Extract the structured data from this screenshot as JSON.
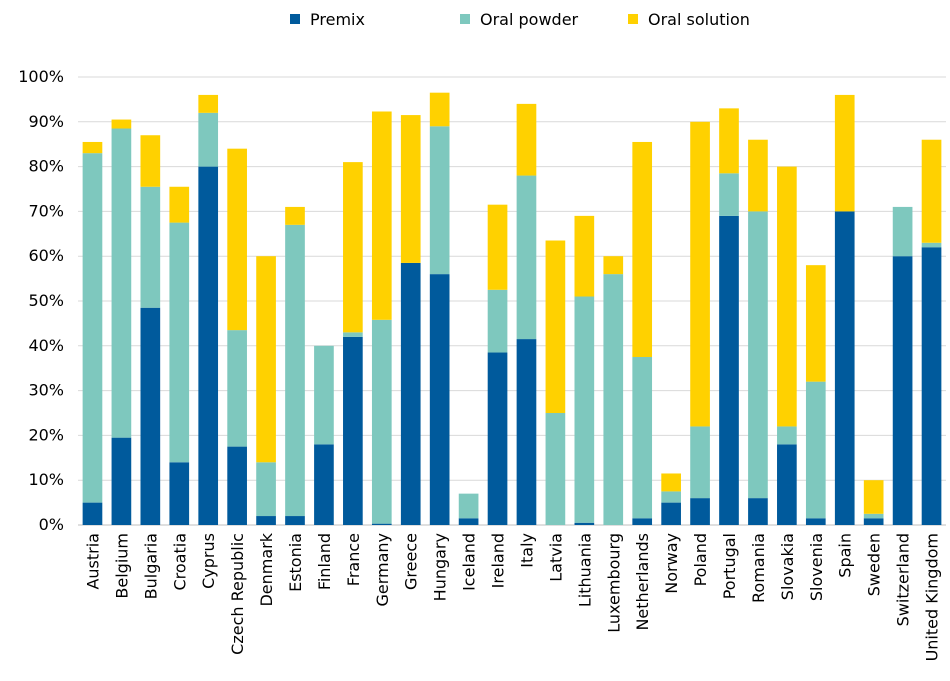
{
  "chart_data": {
    "type": "bar",
    "stacked": true,
    "title": "",
    "xlabel": "",
    "ylabel": "",
    "ylim": [
      0,
      100
    ],
    "yticks": [
      "0%",
      "10%",
      "20%",
      "30%",
      "40%",
      "50%",
      "60%",
      "70%",
      "80%",
      "90%",
      "100%"
    ],
    "grid": true,
    "legend": "top-center",
    "categories": [
      "Austria",
      "Belgium",
      "Bulgaria",
      "Croatia",
      "Cyprus",
      "Czech Republic",
      "Denmark",
      "Estonia",
      "Finland",
      "France",
      "Germany",
      "Greece",
      "Hungary",
      "Iceland",
      "Ireland",
      "Italy",
      "Latvia",
      "Lithuania",
      "Luxembourg",
      "Netherlands",
      "Norway",
      "Poland",
      "Portugal",
      "Romania",
      "Slovakia",
      "Slovenia",
      "Spain",
      "Sweden",
      "Switzerland",
      "United Kingdom"
    ],
    "series": [
      {
        "name": "Premix",
        "color": "#005a9c",
        "values": [
          5,
          19.5,
          48.5,
          14,
          80,
          17.5,
          2,
          2,
          18,
          42,
          0.3,
          58.5,
          56,
          1.5,
          38.5,
          41.5,
          0,
          0.5,
          0,
          1.5,
          5,
          6,
          69,
          6,
          18,
          1.5,
          70,
          1.5,
          60,
          62
        ]
      },
      {
        "name": "Oral powder",
        "color": "#7ec8be",
        "values": [
          78,
          69,
          27,
          53.5,
          12,
          26,
          12,
          65,
          22,
          1,
          45.5,
          0,
          33,
          5.5,
          14,
          36.5,
          25,
          50.5,
          56,
          36,
          2.5,
          16,
          9.5,
          64,
          4,
          30.5,
          0,
          1,
          11,
          1
        ]
      },
      {
        "name": "Oral solution",
        "color": "#ffd100",
        "values": [
          2.5,
          2,
          11.5,
          8,
          4,
          40.5,
          46,
          4,
          0,
          38,
          46.5,
          33,
          7.5,
          0,
          19,
          16,
          38.5,
          18,
          4,
          48,
          4,
          68,
          14.5,
          16,
          58,
          26,
          26,
          7.5,
          0,
          23
        ]
      }
    ]
  }
}
